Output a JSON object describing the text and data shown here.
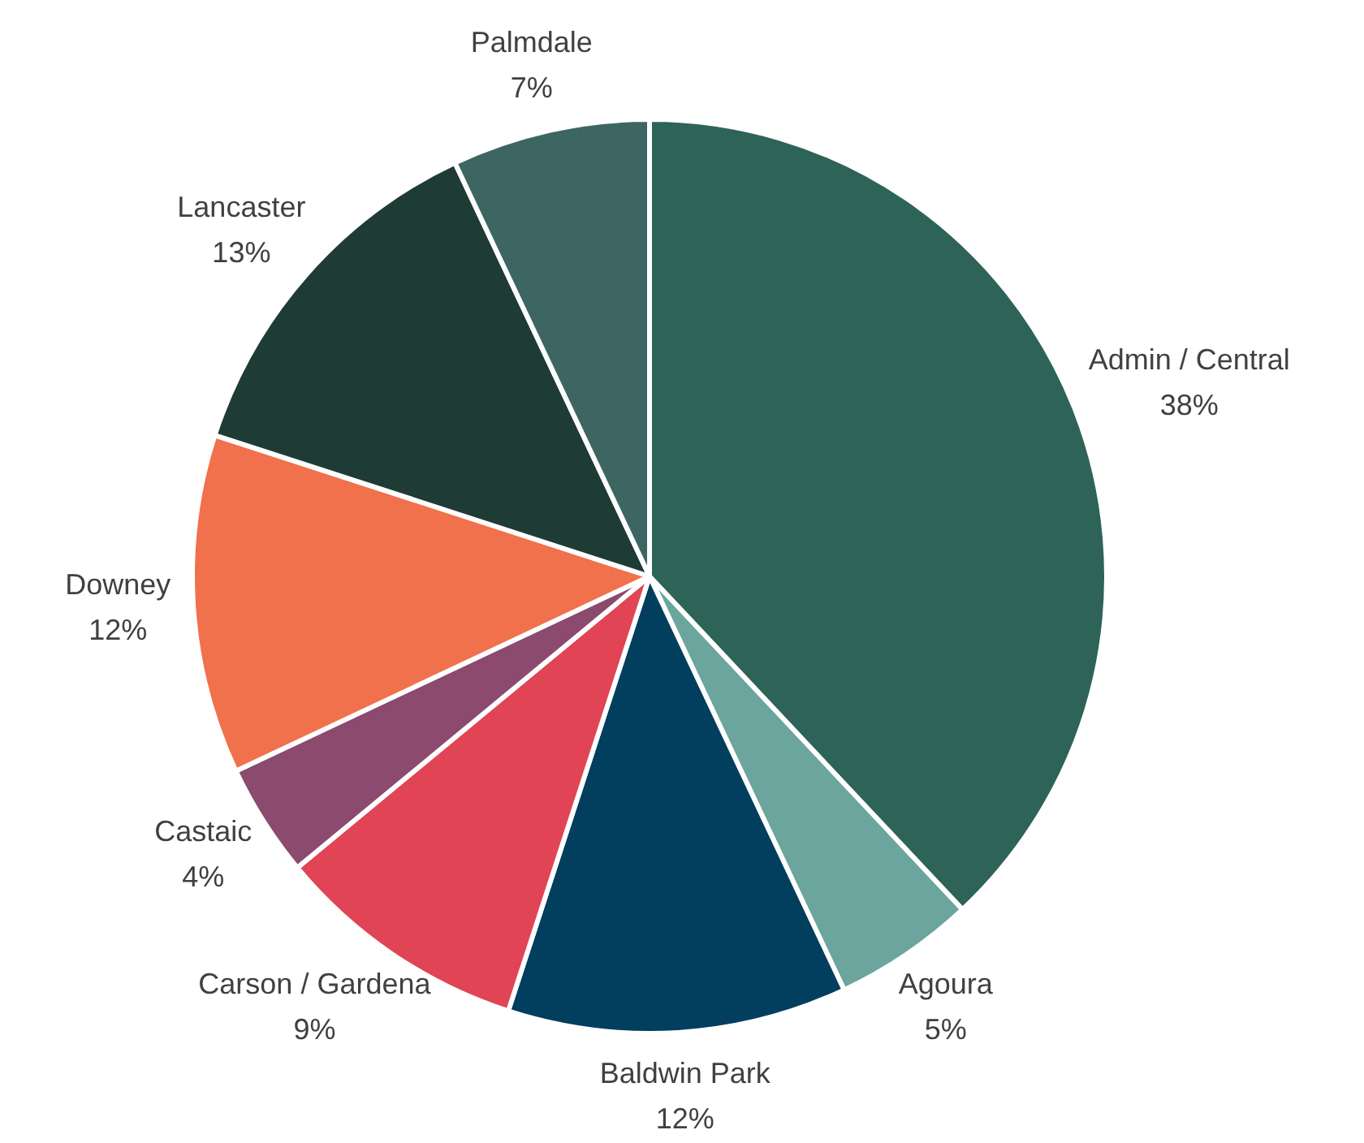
{
  "chart_data": {
    "type": "pie",
    "categories": [
      "Admin / Central",
      "Agoura",
      "Baldwin Park",
      "Carson / Gardena",
      "Castaic",
      "Downey",
      "Lancaster",
      "Palmdale"
    ],
    "values": [
      38,
      5,
      12,
      9,
      4,
      12,
      13,
      7
    ],
    "colors": [
      "#2e6358",
      "#6ba59e",
      "#023e5e",
      "#e04455",
      "#8b4a6e",
      "#f0714c",
      "#1f3b35",
      "#3d6663"
    ],
    "value_labels": [
      "38%",
      "5%",
      "12%",
      "9%",
      "4%",
      "12%",
      "13%",
      "7%"
    ],
    "legend": false
  }
}
